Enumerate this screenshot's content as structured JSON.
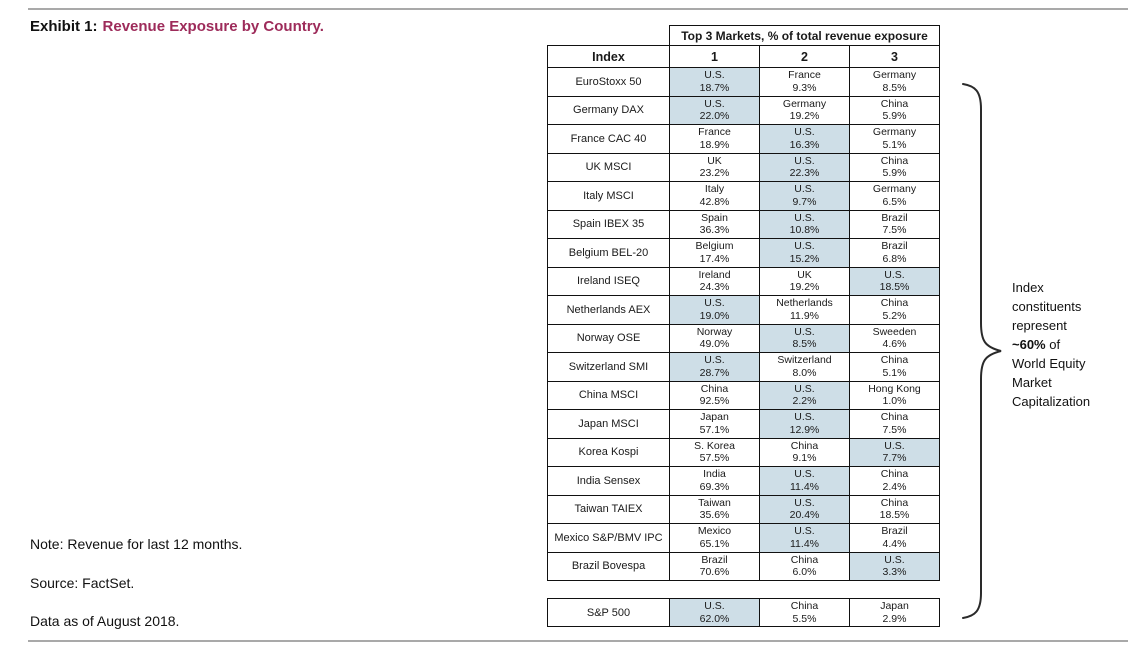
{
  "exhibit": {
    "label": "Exhibit 1:",
    "title": "Revenue Exposure by Country."
  },
  "colors": {
    "accent": "#9D2B5A",
    "highlight": "#CEDEE7"
  },
  "table": {
    "supertitle": "Top 3 Markets, % of total revenue exposure",
    "columns": [
      "Index",
      "1",
      "2",
      "3"
    ],
    "rows": [
      {
        "index": "EuroStoxx 50",
        "markets": [
          {
            "name": "U.S.",
            "pct": "18.7%",
            "hl": true
          },
          {
            "name": "France",
            "pct": "9.3%",
            "hl": false
          },
          {
            "name": "Germany",
            "pct": "8.5%",
            "hl": false
          }
        ]
      },
      {
        "index": "Germany DAX",
        "markets": [
          {
            "name": "U.S.",
            "pct": "22.0%",
            "hl": true
          },
          {
            "name": "Germany",
            "pct": "19.2%",
            "hl": false
          },
          {
            "name": "China",
            "pct": "5.9%",
            "hl": false
          }
        ]
      },
      {
        "index": "France CAC 40",
        "markets": [
          {
            "name": "France",
            "pct": "18.9%",
            "hl": false
          },
          {
            "name": "U.S.",
            "pct": "16.3%",
            "hl": true
          },
          {
            "name": "Germany",
            "pct": "5.1%",
            "hl": false
          }
        ]
      },
      {
        "index": "UK MSCI",
        "markets": [
          {
            "name": "UK",
            "pct": "23.2%",
            "hl": false
          },
          {
            "name": "U.S.",
            "pct": "22.3%",
            "hl": true
          },
          {
            "name": "China",
            "pct": "5.9%",
            "hl": false
          }
        ]
      },
      {
        "index": "Italy MSCI",
        "markets": [
          {
            "name": "Italy",
            "pct": "42.8%",
            "hl": false
          },
          {
            "name": "U.S.",
            "pct": "9.7%",
            "hl": true
          },
          {
            "name": "Germany",
            "pct": "6.5%",
            "hl": false
          }
        ]
      },
      {
        "index": "Spain IBEX 35",
        "markets": [
          {
            "name": "Spain",
            "pct": "36.3%",
            "hl": false
          },
          {
            "name": "U.S.",
            "pct": "10.8%",
            "hl": true
          },
          {
            "name": "Brazil",
            "pct": "7.5%",
            "hl": false
          }
        ]
      },
      {
        "index": "Belgium BEL-20",
        "markets": [
          {
            "name": "Belgium",
            "pct": "17.4%",
            "hl": false
          },
          {
            "name": "U.S.",
            "pct": "15.2%",
            "hl": true
          },
          {
            "name": "Brazil",
            "pct": "6.8%",
            "hl": false
          }
        ]
      },
      {
        "index": "Ireland ISEQ",
        "markets": [
          {
            "name": "Ireland",
            "pct": "24.3%",
            "hl": false
          },
          {
            "name": "UK",
            "pct": "19.2%",
            "hl": false
          },
          {
            "name": "U.S.",
            "pct": "18.5%",
            "hl": true
          }
        ]
      },
      {
        "index": "Netherlands AEX",
        "markets": [
          {
            "name": "U.S.",
            "pct": "19.0%",
            "hl": true
          },
          {
            "name": "Netherlands",
            "pct": "11.9%",
            "hl": false
          },
          {
            "name": "China",
            "pct": "5.2%",
            "hl": false
          }
        ]
      },
      {
        "index": "Norway OSE",
        "markets": [
          {
            "name": "Norway",
            "pct": "49.0%",
            "hl": false
          },
          {
            "name": "U.S.",
            "pct": "8.5%",
            "hl": true
          },
          {
            "name": "Sweeden",
            "pct": "4.6%",
            "hl": false
          }
        ]
      },
      {
        "index": "Switzerland SMI",
        "markets": [
          {
            "name": "U.S.",
            "pct": "28.7%",
            "hl": true
          },
          {
            "name": "Switzerland",
            "pct": "8.0%",
            "hl": false
          },
          {
            "name": "China",
            "pct": "5.1%",
            "hl": false
          }
        ]
      },
      {
        "index": "China MSCI",
        "markets": [
          {
            "name": "China",
            "pct": "92.5%",
            "hl": false
          },
          {
            "name": "U.S.",
            "pct": "2.2%",
            "hl": true
          },
          {
            "name": "Hong Kong",
            "pct": "1.0%",
            "hl": false
          }
        ]
      },
      {
        "index": "Japan MSCI",
        "markets": [
          {
            "name": "Japan",
            "pct": "57.1%",
            "hl": false
          },
          {
            "name": "U.S.",
            "pct": "12.9%",
            "hl": true
          },
          {
            "name": "China",
            "pct": "7.5%",
            "hl": false
          }
        ]
      },
      {
        "index": "Korea Kospi",
        "markets": [
          {
            "name": "S. Korea",
            "pct": "57.5%",
            "hl": false
          },
          {
            "name": "China",
            "pct": "9.1%",
            "hl": false
          },
          {
            "name": "U.S.",
            "pct": "7.7%",
            "hl": true
          }
        ]
      },
      {
        "index": "India Sensex",
        "markets": [
          {
            "name": "India",
            "pct": "69.3%",
            "hl": false
          },
          {
            "name": "U.S.",
            "pct": "11.4%",
            "hl": true
          },
          {
            "name": "China",
            "pct": "2.4%",
            "hl": false
          }
        ]
      },
      {
        "index": "Taiwan TAIEX",
        "markets": [
          {
            "name": "Taiwan",
            "pct": "35.6%",
            "hl": false
          },
          {
            "name": "U.S.",
            "pct": "20.4%",
            "hl": true
          },
          {
            "name": "China",
            "pct": "18.5%",
            "hl": false
          }
        ]
      },
      {
        "index": "Mexico S&P/BMV IPC",
        "markets": [
          {
            "name": "Mexico",
            "pct": "65.1%",
            "hl": false
          },
          {
            "name": "U.S.",
            "pct": "11.4%",
            "hl": true
          },
          {
            "name": "Brazil",
            "pct": "4.4%",
            "hl": false
          }
        ]
      },
      {
        "index": "Brazil Bovespa",
        "markets": [
          {
            "name": "Brazil",
            "pct": "70.6%",
            "hl": false
          },
          {
            "name": "China",
            "pct": "6.0%",
            "hl": false
          },
          {
            "name": "U.S.",
            "pct": "3.3%",
            "hl": true
          }
        ]
      }
    ],
    "sp500_row": {
      "index": "S&P 500",
      "markets": [
        {
          "name": "U.S.",
          "pct": "62.0%",
          "hl": true
        },
        {
          "name": "China",
          "pct": "5.5%",
          "hl": false
        },
        {
          "name": "Japan",
          "pct": "2.9%",
          "hl": false
        }
      ]
    }
  },
  "annotation": {
    "lines_before": [
      "Index",
      "constituents",
      "represent"
    ],
    "bold": "~60%",
    "bold_suffix": " of",
    "lines_after": [
      "World Equity",
      "Market",
      "Capitalization"
    ]
  },
  "notes": {
    "note": "Note: Revenue for last 12 months.",
    "source": "Source: FactSet.",
    "data_as_of": "Data as of August 2018."
  }
}
